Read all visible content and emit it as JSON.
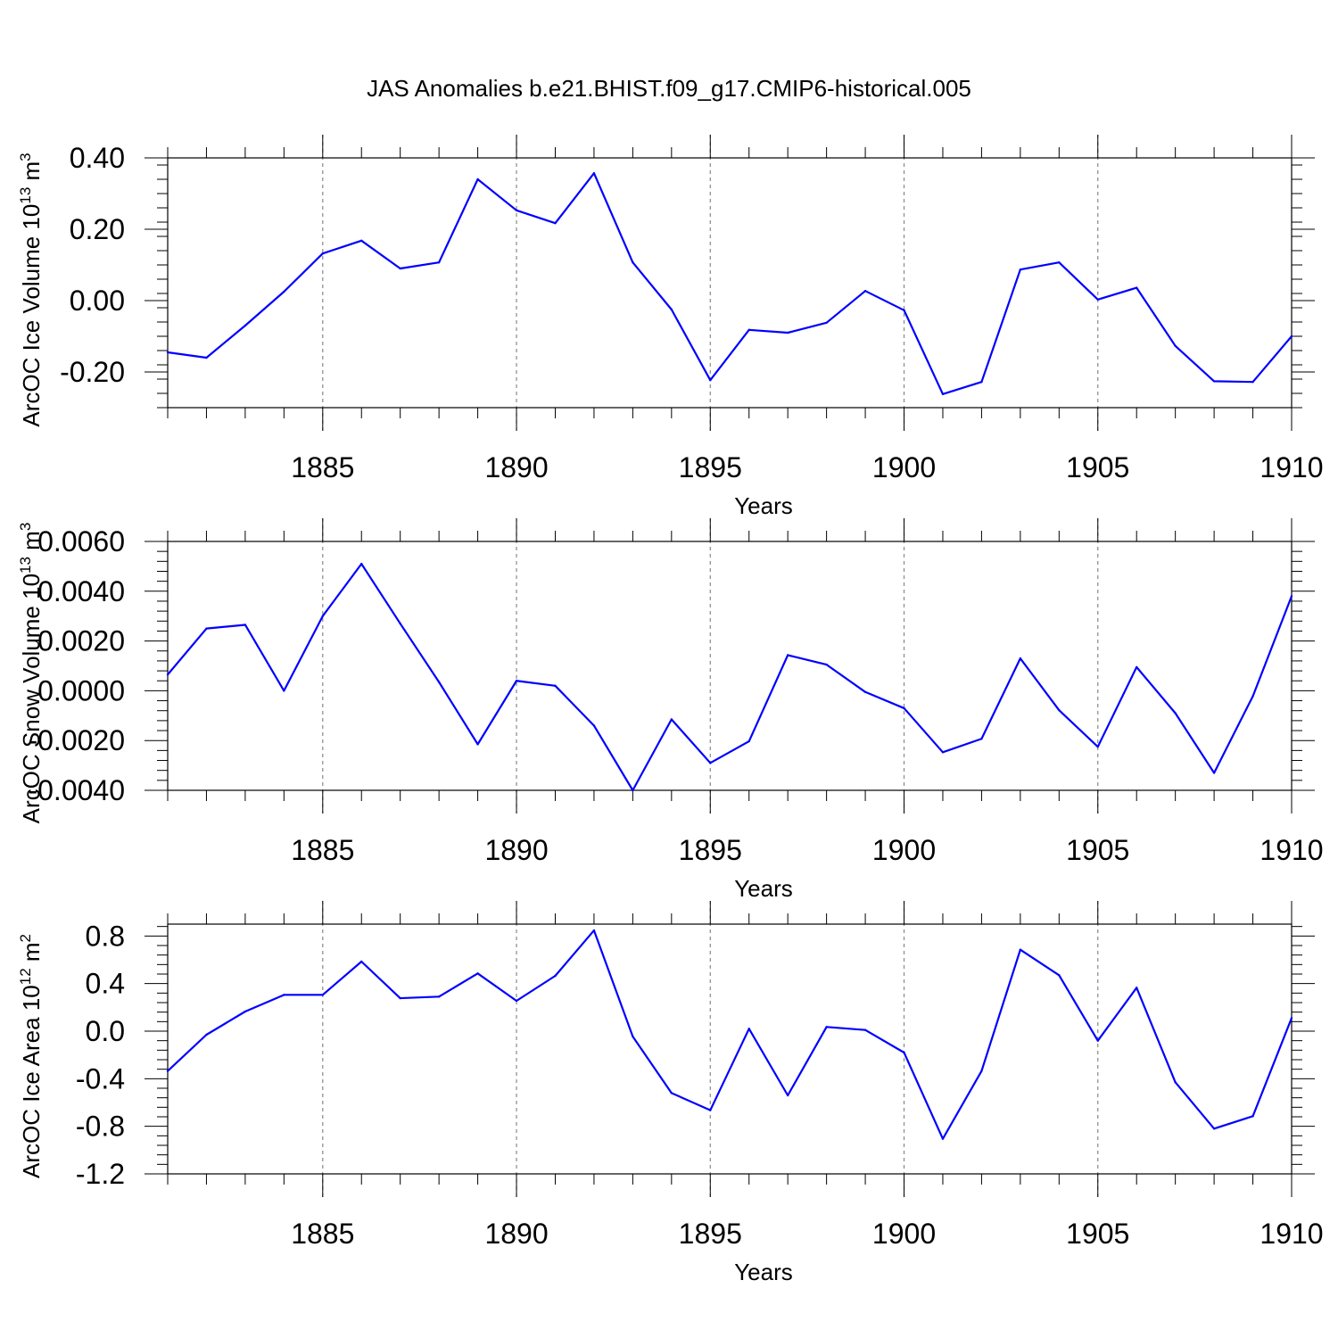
{
  "title": "JAS Anomalies b.e21.BHIST.f09_g17.CMIP6-historical.005",
  "colors": {
    "line": "#0000ff",
    "grid": "#888888",
    "axis": "#000000"
  },
  "chart_data": [
    {
      "type": "line",
      "ylabel": "ArcOC Ice Volume 10",
      "ylabel_exp": "13",
      "ylabel_unit": " m",
      "ylabel_unit_exp": "3",
      "xlabel": "Years",
      "xlim": [
        1881,
        1910
      ],
      "ylim": [
        -0.3,
        0.4
      ],
      "yticks": [
        -0.2,
        0.0,
        0.2,
        0.4
      ],
      "ytick_labels": [
        "-0.20",
        "0.00",
        "0.20",
        "0.40"
      ],
      "xticks": [
        1885,
        1890,
        1895,
        1900,
        1905,
        1910
      ],
      "xtick_labels": [
        "1885",
        "1890",
        "1895",
        "1900",
        "1905",
        "1910"
      ],
      "grid_x": [
        1885,
        1890,
        1895,
        1900,
        1905
      ],
      "x": [
        1881,
        1882,
        1883,
        1884,
        1885,
        1886,
        1887,
        1888,
        1889,
        1890,
        1891,
        1892,
        1893,
        1894,
        1895,
        1896,
        1897,
        1898,
        1899,
        1900,
        1901,
        1902,
        1903,
        1904,
        1905,
        1906,
        1907,
        1908,
        1909,
        1910
      ],
      "series": [
        {
          "name": "ArcOC Ice Volume",
          "values": [
            -0.145,
            -0.16,
            -0.07,
            0.025,
            0.132,
            0.168,
            0.09,
            0.107,
            0.34,
            0.253,
            0.217,
            0.357,
            0.107,
            -0.025,
            -0.223,
            -0.082,
            -0.09,
            -0.062,
            0.027,
            -0.027,
            -0.262,
            -0.228,
            0.087,
            0.107,
            0.003,
            0.036,
            -0.127,
            -0.226,
            -0.228,
            -0.1
          ]
        }
      ]
    },
    {
      "type": "line",
      "ylabel": "ArcOC Snow Volume 10",
      "ylabel_exp": "13",
      "ylabel_unit": " m",
      "ylabel_unit_exp": "3",
      "xlabel": "Years",
      "xlim": [
        1881,
        1910
      ],
      "ylim": [
        -0.004,
        0.006
      ],
      "yticks": [
        -0.004,
        -0.002,
        0.0,
        0.002,
        0.004,
        0.006
      ],
      "ytick_labels": [
        "-0.0040",
        "-0.0020",
        "0.0000",
        "0.0020",
        "0.0040",
        "0.0060"
      ],
      "xticks": [
        1885,
        1890,
        1895,
        1900,
        1905,
        1910
      ],
      "xtick_labels": [
        "1885",
        "1890",
        "1895",
        "1900",
        "1905",
        "1910"
      ],
      "grid_x": [
        1885,
        1890,
        1895,
        1900,
        1905
      ],
      "x": [
        1881,
        1882,
        1883,
        1884,
        1885,
        1886,
        1887,
        1888,
        1889,
        1890,
        1891,
        1892,
        1893,
        1894,
        1895,
        1896,
        1897,
        1898,
        1899,
        1900,
        1901,
        1902,
        1903,
        1904,
        1905,
        1906,
        1907,
        1908,
        1909,
        1910
      ],
      "series": [
        {
          "name": "ArcOC Snow Volume",
          "values": [
            0.00065,
            0.0025,
            0.00265,
            0.0,
            0.003,
            0.0051,
            0.0027,
            0.00035,
            -0.00215,
            0.0004,
            0.0002,
            -0.0014,
            -0.004,
            -0.00115,
            -0.0029,
            -0.00203,
            0.00143,
            0.00105,
            -5e-05,
            -0.0007,
            -0.00247,
            -0.00193,
            0.0013,
            -0.00078,
            -0.00225,
            0.00095,
            -0.0009,
            -0.0033,
            -0.00022,
            0.0038
          ]
        }
      ]
    },
    {
      "type": "line",
      "ylabel": "ArcOC Ice Area 10",
      "ylabel_exp": "12",
      "ylabel_unit": " m",
      "ylabel_unit_exp": "2",
      "xlabel": "Years",
      "xlim": [
        1881,
        1910
      ],
      "ylim": [
        -1.2,
        0.9
      ],
      "yticks": [
        -1.2,
        -0.8,
        -0.4,
        0.0,
        0.4,
        0.8
      ],
      "ytick_labels": [
        "-1.2",
        "-0.8",
        "-0.4",
        "0.0",
        "0.4",
        "0.8"
      ],
      "xticks": [
        1885,
        1890,
        1895,
        1900,
        1905,
        1910
      ],
      "xtick_labels": [
        "1885",
        "1890",
        "1895",
        "1900",
        "1905",
        "1910"
      ],
      "grid_x": [
        1885,
        1890,
        1895,
        1900,
        1905
      ],
      "x": [
        1881,
        1882,
        1883,
        1884,
        1885,
        1886,
        1887,
        1888,
        1889,
        1890,
        1891,
        1892,
        1893,
        1894,
        1895,
        1896,
        1897,
        1898,
        1899,
        1900,
        1901,
        1902,
        1903,
        1904,
        1905,
        1906,
        1907,
        1908,
        1909,
        1910
      ],
      "series": [
        {
          "name": "ArcOC Ice Area",
          "values": [
            -0.335,
            -0.03,
            0.165,
            0.305,
            0.305,
            0.585,
            0.277,
            0.29,
            0.485,
            0.255,
            0.465,
            0.847,
            -0.045,
            -0.52,
            -0.665,
            0.02,
            -0.54,
            0.035,
            0.01,
            -0.18,
            -0.905,
            -0.335,
            0.685,
            0.47,
            -0.08,
            0.365,
            -0.43,
            -0.82,
            -0.715,
            0.11
          ]
        }
      ]
    }
  ]
}
